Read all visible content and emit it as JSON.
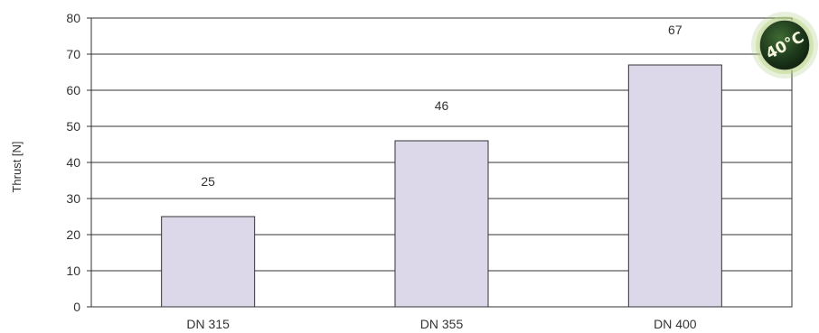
{
  "chart_data": {
    "type": "bar",
    "categories": [
      "DN 315",
      "DN 355",
      "DN 400"
    ],
    "values": [
      25,
      46,
      67
    ],
    "data_labels": [
      "25",
      "46",
      "67"
    ],
    "title": "",
    "xlabel": "",
    "ylabel": "Thrust [N]",
    "ylim": [
      0,
      80
    ],
    "yticks": [
      0,
      10,
      20,
      30,
      40,
      50,
      60,
      70,
      80
    ],
    "grid": true,
    "legend": "none",
    "bar_color": "#dcd8ea",
    "bar_edge_color": "#333333"
  },
  "badge": {
    "label": "40°C",
    "shape": "temperature-badge-icon",
    "color": "#1e3a1c",
    "glow_color": "#7fa64a"
  }
}
